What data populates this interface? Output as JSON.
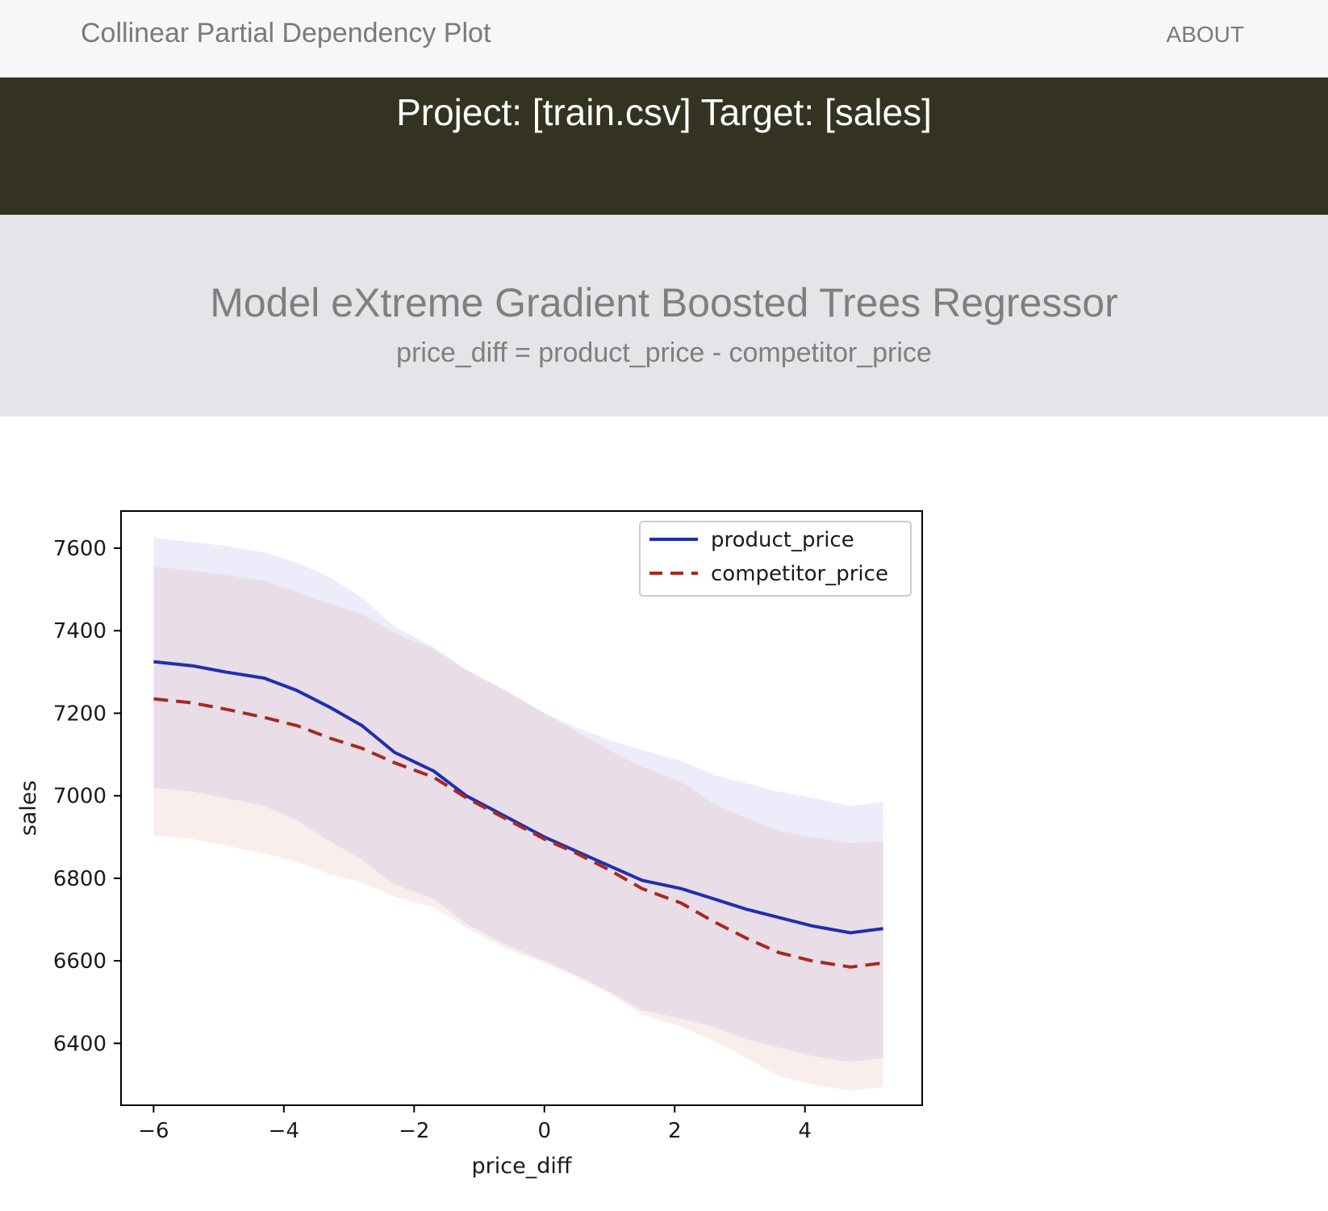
{
  "nav": {
    "brand": "Collinear Partial Dependency Plot",
    "about": "ABOUT"
  },
  "banner": {
    "project": "Project: [train.csv] Target: [sales]"
  },
  "model": {
    "title": "Model eXtreme Gradient Boosted Trees Regressor",
    "formula": "price_diff = product_price - competitor_price"
  },
  "colors": {
    "nav_bg": "#f7f7f7",
    "banner_bg": "#343322",
    "model_bg": "#e5e4e8",
    "product_series": "#1f2fad",
    "competitor_series": "#a52a22"
  },
  "chart_data": {
    "type": "line",
    "title": "",
    "xlabel": "price_diff",
    "ylabel": "sales",
    "xlim": [
      -6.5,
      5.8
    ],
    "ylim": [
      6250,
      7690
    ],
    "xticks": [
      -6,
      -4,
      -2,
      0,
      2,
      4
    ],
    "xtick_labels": [
      "−6",
      "−4",
      "−2",
      "0",
      "2",
      "4"
    ],
    "yticks": [
      6400,
      6600,
      6800,
      7000,
      7200,
      7400,
      7600
    ],
    "ytick_labels": [
      "6400",
      "6600",
      "6800",
      "7000",
      "7200",
      "7400",
      "7600"
    ],
    "grid": false,
    "legend_position": "top-right",
    "x": [
      -6.0,
      -5.4,
      -4.9,
      -4.3,
      -3.8,
      -3.3,
      -2.8,
      -2.3,
      -1.7,
      -1.2,
      -0.6,
      0.0,
      0.5,
      1.0,
      1.5,
      2.1,
      2.6,
      3.1,
      3.6,
      4.1,
      4.7,
      5.2
    ],
    "series": [
      {
        "name": "product_price",
        "style": "solid",
        "color": "#1f2fad",
        "values": [
          7325,
          7315,
          7300,
          7285,
          7255,
          7215,
          7170,
          7105,
          7060,
          7000,
          6950,
          6900,
          6865,
          6830,
          6795,
          6775,
          6750,
          6725,
          6705,
          6685,
          6668,
          6678
        ],
        "lower": [
          7020,
          7010,
          6995,
          6975,
          6940,
          6890,
          6845,
          6785,
          6750,
          6690,
          6640,
          6600,
          6565,
          6525,
          6480,
          6460,
          6440,
          6410,
          6390,
          6370,
          6355,
          6365
        ],
        "upper": [
          7625,
          7615,
          7605,
          7590,
          7565,
          7530,
          7480,
          7410,
          7360,
          7305,
          7255,
          7200,
          7165,
          7135,
          7110,
          7085,
          7050,
          7030,
          7010,
          6995,
          6975,
          6985
        ]
      },
      {
        "name": "competitor_price",
        "style": "dashed",
        "color": "#a52a22",
        "values": [
          7235,
          7225,
          7210,
          7190,
          7170,
          7140,
          7115,
          7080,
          7045,
          6995,
          6945,
          6895,
          6860,
          6820,
          6775,
          6740,
          6695,
          6655,
          6620,
          6600,
          6585,
          6595
        ],
        "lower": [
          6905,
          6895,
          6880,
          6860,
          6840,
          6810,
          6790,
          6755,
          6730,
          6680,
          6630,
          6595,
          6560,
          6520,
          6470,
          6440,
          6405,
          6365,
          6320,
          6300,
          6285,
          6295
        ],
        "upper": [
          7555,
          7545,
          7535,
          7520,
          7495,
          7465,
          7440,
          7395,
          7355,
          7305,
          7255,
          7200,
          7155,
          7110,
          7070,
          7035,
          6980,
          6945,
          6915,
          6900,
          6885,
          6890
        ]
      }
    ]
  }
}
